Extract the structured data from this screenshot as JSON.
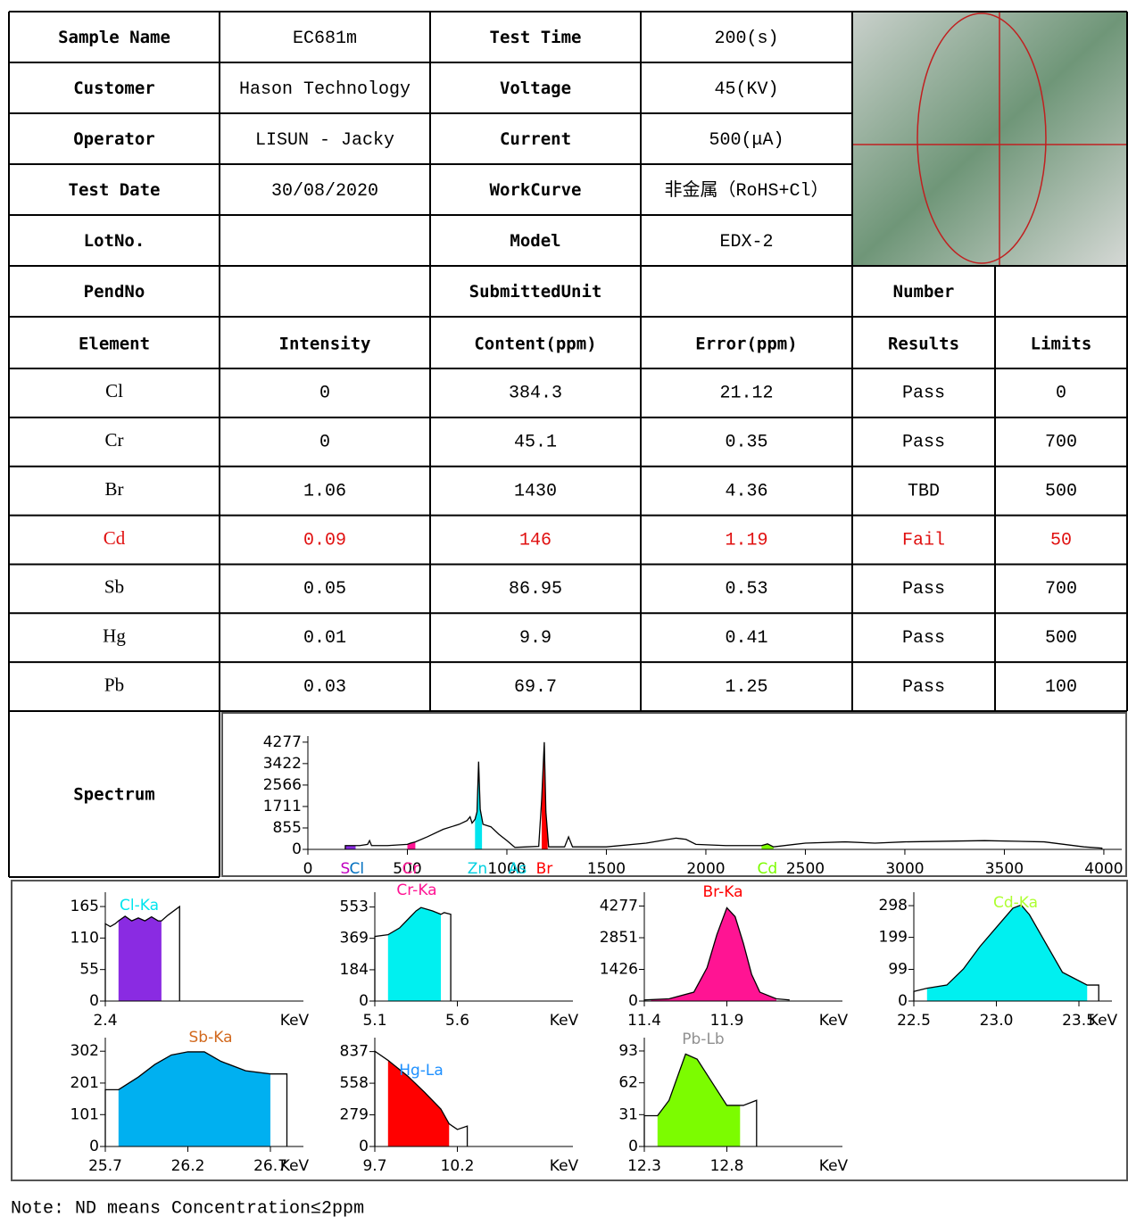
{
  "info": {
    "rows": [
      [
        "Sample Name",
        "EC681m",
        "Test Time",
        "200(s)"
      ],
      [
        "Customer",
        "Hason Technology",
        "Voltage",
        "45(KV)"
      ],
      [
        "Operator",
        "LISUN - Jacky",
        "Current",
        "500(μA)"
      ],
      [
        "Test Date",
        "30/08/2020",
        "WorkCurve",
        "非金属（RoHS+Cl）"
      ],
      [
        "LotNo.",
        null,
        "Model",
        "EDX-2"
      ],
      [
        "PendNo",
        null,
        "SubmittedUnit",
        null,
        "Number",
        null
      ]
    ]
  },
  "results": {
    "header": [
      "Element",
      "Intensity",
      "Content(ppm)",
      "Error(ppm)",
      "Results",
      "Limits"
    ],
    "rows": [
      {
        "cells": [
          "Cl",
          "0",
          "384.3",
          "21.12",
          "Pass",
          "0"
        ],
        "color": "#000000"
      },
      {
        "cells": [
          "Cr",
          "0",
          "45.1",
          "0.35",
          "Pass",
          "700"
        ],
        "color": "#000000"
      },
      {
        "cells": [
          "Br",
          "1.06",
          "1430",
          "4.36",
          "TBD",
          "500"
        ],
        "color": "#000000"
      },
      {
        "cells": [
          "Cd",
          "0.09",
          "146",
          "1.19",
          "Fail",
          "50"
        ],
        "color": "#e01010"
      },
      {
        "cells": [
          "Sb",
          "0.05",
          "86.95",
          "0.53",
          "Pass",
          "700"
        ],
        "color": "#000000"
      },
      {
        "cells": [
          "Hg",
          "0.01",
          "9.9",
          "0.41",
          "Pass",
          "500"
        ],
        "color": "#000000"
      },
      {
        "cells": [
          "Pb",
          "0.03",
          "69.7",
          "1.25",
          "Pass",
          "100"
        ],
        "color": "#000000"
      }
    ]
  },
  "spectrum": {
    "label": "Spectrum",
    "chart": {
      "type": "line",
      "xlim": [
        0,
        4090
      ],
      "ylim": [
        0,
        4520
      ],
      "xticks": [
        0,
        500,
        1000,
        1500,
        2000,
        2500,
        3000,
        3500,
        4000
      ],
      "yticks": [
        0,
        855,
        1711,
        2566,
        3422,
        4277
      ],
      "color": "#000000",
      "x": [
        188,
        188,
        260,
        300,
        310,
        320,
        400,
        500,
        516,
        540,
        600,
        680,
        760,
        800,
        815,
        825,
        840,
        850,
        858,
        866,
        880,
        920,
        960,
        1000,
        1040,
        1100,
        1160,
        1175,
        1188,
        1196,
        1210,
        1290,
        1310,
        1330,
        1500,
        1700,
        1850,
        1900,
        1950,
        2100,
        2280,
        2310,
        2340,
        2500,
        2700,
        2850,
        3000,
        3400,
        3700,
        3900,
        3990,
        3990
      ],
      "values": [
        0,
        150,
        150,
        200,
        350,
        150,
        150,
        200,
        250,
        300,
        500,
        800,
        1000,
        1150,
        1300,
        1050,
        1200,
        1500,
        3500,
        1600,
        1000,
        900,
        600,
        350,
        80,
        100,
        120,
        2000,
        4277,
        1500,
        100,
        100,
        500,
        100,
        100,
        250,
        450,
        400,
        200,
        150,
        150,
        220,
        100,
        250,
        300,
        250,
        300,
        350,
        300,
        100,
        50,
        0
      ],
      "fills": [
        {
          "from": 188,
          "to": 240,
          "color": "#8a2be2"
        },
        {
          "from": 500,
          "to": 540,
          "color": "#ff1493"
        },
        {
          "from": 840,
          "to": 875,
          "color": "#00e5ee"
        },
        {
          "from": 1175,
          "to": 1205,
          "color": "#ff0000"
        },
        {
          "from": 2280,
          "to": 2340,
          "color": "#7cfc00"
        }
      ],
      "peak_labels": [
        {
          "label": "S",
          "x": 188,
          "color": "#c000c0"
        },
        {
          "label": "Cl",
          "x": 246,
          "color": "#0070c0"
        },
        {
          "label": "Cr",
          "x": 516,
          "color": "#ff1493"
        },
        {
          "label": "Zn",
          "x": 852,
          "color": "#00d0e0"
        },
        {
          "label": "As",
          "x": 1054,
          "color": "#00d0e0"
        },
        {
          "label": "Br",
          "x": 1188,
          "color": "#ff0000"
        },
        {
          "label": "Cd",
          "x": 2309,
          "color": "#7cfc00"
        }
      ]
    }
  },
  "element_charts": [
    {
      "type": "line",
      "title": "Cl-Ka",
      "title_color": "#00e5ee",
      "x_label": "KeV",
      "fill_color": "#8a2be2",
      "xlim": [
        2.4,
        3.6
      ],
      "ylim": [
        0,
        190
      ],
      "xticks": [
        2.4
      ],
      "yticks": [
        0,
        55,
        110,
        165
      ],
      "x": [
        2.4,
        2.4,
        2.43,
        2.46,
        2.48,
        2.52,
        2.56,
        2.6,
        2.64,
        2.68,
        2.72,
        2.74,
        2.78,
        2.85,
        2.85
      ],
      "values": [
        0,
        135,
        130,
        135,
        140,
        148,
        140,
        145,
        140,
        147,
        140,
        140,
        150,
        165,
        0
      ],
      "fill": [
        2.48,
        2.74
      ]
    },
    {
      "type": "line",
      "title": "Cr-Ka",
      "title_color": "#ff1493",
      "x_label": "KeV",
      "fill_color": "#00f0f0",
      "xlim": [
        5.1,
        6.3
      ],
      "ylim": [
        0,
        640
      ],
      "xticks": [
        5.1,
        5.6
      ],
      "yticks": [
        0,
        184,
        369,
        553
      ],
      "x": [
        5.1,
        5.1,
        5.18,
        5.25,
        5.3,
        5.35,
        5.38,
        5.45,
        5.5,
        5.52,
        5.56,
        5.56
      ],
      "values": [
        0,
        380,
        390,
        430,
        480,
        530,
        550,
        530,
        510,
        520,
        510,
        0
      ],
      "fill": [
        5.18,
        5.5
      ]
    },
    {
      "type": "line",
      "title": "Br-Ka",
      "title_color": "#ff0000",
      "x_label": "KeV",
      "fill_color": "#ff1493",
      "xlim": [
        11.4,
        12.6
      ],
      "ylim": [
        0,
        4900
      ],
      "xticks": [
        11.4,
        11.9
      ],
      "yticks": [
        0,
        1426,
        2851,
        4277
      ],
      "x": [
        11.4,
        11.4,
        11.55,
        11.7,
        11.78,
        11.84,
        11.9,
        11.95,
        12.0,
        12.05,
        12.1,
        12.2,
        12.28
      ],
      "values": [
        0,
        50,
        100,
        400,
        1500,
        3000,
        4200,
        3800,
        2600,
        1200,
        400,
        100,
        50
      ],
      "fill": [
        11.44,
        12.2
      ]
    },
    {
      "type": "line",
      "title": "Cd-Ka",
      "title_color": "#adff2f",
      "x_label": "KeV",
      "fill_color": "#00f0f0",
      "xlim": [
        22.5,
        23.7
      ],
      "ylim": [
        0,
        340
      ],
      "xticks": [
        22.5,
        {
          "value": 23,
          "label": "23.0"
        },
        23.5
      ],
      "yticks": [
        0,
        99,
        199,
        298
      ],
      "x": [
        22.5,
        22.5,
        22.58,
        22.7,
        22.8,
        22.9,
        23.0,
        23.1,
        23.15,
        23.2,
        23.3,
        23.4,
        23.55,
        23.62,
        23.62
      ],
      "values": [
        0,
        30,
        40,
        50,
        100,
        170,
        230,
        290,
        300,
        270,
        180,
        90,
        50,
        50,
        0
      ],
      "fill": [
        22.58,
        23.55
      ]
    },
    {
      "type": "line",
      "title": "Sb-Ka",
      "title_color": "#d2691e",
      "x_label": "KeV",
      "fill_color": "#00b0f0",
      "xlim": [
        25.7,
        26.9
      ],
      "ylim": [
        0,
        345
      ],
      "xticks": [
        25.7,
        26.2,
        26.7
      ],
      "yticks": [
        0,
        101,
        201,
        302
      ],
      "x": [
        25.7,
        25.7,
        25.78,
        25.9,
        26.0,
        26.1,
        26.2,
        26.3,
        26.4,
        26.55,
        26.7,
        26.8,
        26.8
      ],
      "values": [
        0,
        180,
        180,
        220,
        260,
        290,
        300,
        300,
        270,
        240,
        230,
        230,
        0
      ],
      "fill": [
        25.78,
        26.7
      ]
    },
    {
      "type": "line",
      "title": "Hg-La",
      "title_color": "#1e90ff",
      "x_label": "KeV",
      "fill_color": "#ff0000",
      "xlim": [
        9.7,
        10.9
      ],
      "ylim": [
        0,
        960
      ],
      "xticks": [
        9.7,
        10.2
      ],
      "yticks": [
        0,
        279,
        558,
        837
      ],
      "x": [
        9.7,
        9.7,
        9.78,
        9.9,
        10.0,
        10.1,
        10.15,
        10.2,
        10.26,
        10.26
      ],
      "values": [
        0,
        840,
        760,
        620,
        480,
        330,
        200,
        150,
        180,
        0
      ],
      "fill": [
        9.78,
        10.15
      ]
    },
    {
      "type": "line",
      "title": "Pb-Lb",
      "title_color": "#909090",
      "x_label": "KeV",
      "fill_color": "#7cfc00",
      "xlim": [
        12.3,
        13.5
      ],
      "ylim": [
        0,
        106
      ],
      "xticks": [
        12.3,
        12.8
      ],
      "yticks": [
        0,
        31,
        62,
        93
      ],
      "x": [
        12.3,
        12.3,
        12.38,
        12.45,
        12.55,
        12.62,
        12.7,
        12.8,
        12.9,
        12.98,
        12.98
      ],
      "values": [
        0,
        30,
        30,
        45,
        90,
        85,
        65,
        40,
        40,
        45,
        0
      ],
      "fill": [
        12.38,
        12.88
      ]
    }
  ],
  "note": "Note: ND means Concentration≤2ppm"
}
